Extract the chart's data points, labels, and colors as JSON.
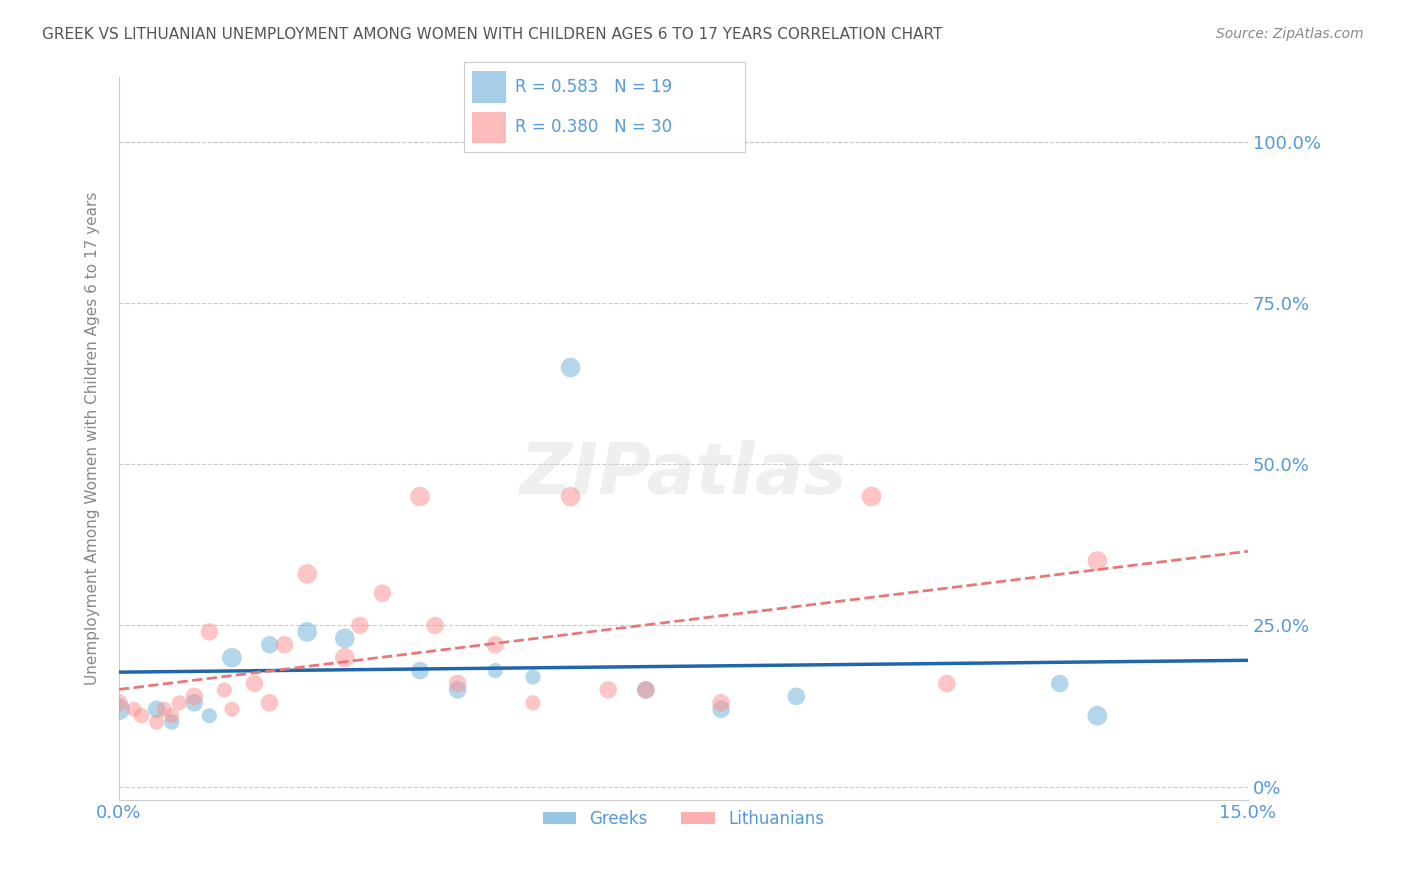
{
  "title": "GREEK VS LITHUANIAN UNEMPLOYMENT AMONG WOMEN WITH CHILDREN AGES 6 TO 17 YEARS CORRELATION CHART",
  "source": "Source: ZipAtlas.com",
  "xlabel": "",
  "ylabel": "Unemployment Among Women with Children Ages 6 to 17 years",
  "xlim": [
    0.0,
    0.15
  ],
  "ylim": [
    -0.02,
    1.1
  ],
  "xticks": [
    0.0,
    0.05,
    0.1,
    0.15
  ],
  "xtick_labels": [
    "0.0%",
    "",
    "",
    "15.0%"
  ],
  "ytick_labels_right": [
    "0%",
    "25.0%",
    "50.0%",
    "75.0%",
    "100.0%"
  ],
  "yticks_right": [
    0.0,
    0.25,
    0.5,
    0.75,
    1.0
  ],
  "watermark": "ZIPatlas",
  "legend_blue_r": "R = 0.583",
  "legend_blue_n": "N = 19",
  "legend_pink_r": "R = 0.380",
  "legend_pink_n": "N = 30",
  "blue_color": "#6baed6",
  "pink_color": "#fc8d8d",
  "blue_line_color": "#2166ac",
  "pink_line_color": "#e87878",
  "title_color": "#555555",
  "axis_label_color": "#888888",
  "tick_color": "#5599dd",
  "grid_color": "#cccccc",
  "blue_scatter_x": [
    0.0,
    0.005,
    0.007,
    0.01,
    0.012,
    0.015,
    0.02,
    0.025,
    0.03,
    0.04,
    0.045,
    0.05,
    0.055,
    0.06,
    0.07,
    0.08,
    0.09,
    0.125,
    0.13
  ],
  "blue_scatter_y": [
    0.12,
    0.12,
    0.1,
    0.13,
    0.11,
    0.2,
    0.22,
    0.24,
    0.23,
    0.18,
    0.15,
    0.18,
    0.17,
    0.65,
    0.15,
    0.12,
    0.14,
    0.16,
    0.11
  ],
  "blue_scatter_size": [
    120,
    80,
    60,
    80,
    60,
    100,
    80,
    100,
    100,
    80,
    80,
    60,
    60,
    100,
    80,
    80,
    80,
    80,
    100
  ],
  "pink_scatter_x": [
    0.0,
    0.002,
    0.003,
    0.005,
    0.006,
    0.007,
    0.008,
    0.01,
    0.012,
    0.014,
    0.015,
    0.018,
    0.02,
    0.022,
    0.025,
    0.03,
    0.032,
    0.035,
    0.04,
    0.042,
    0.045,
    0.05,
    0.055,
    0.06,
    0.065,
    0.07,
    0.08,
    0.1,
    0.11,
    0.13
  ],
  "pink_scatter_y": [
    0.13,
    0.12,
    0.11,
    0.1,
    0.12,
    0.11,
    0.13,
    0.14,
    0.24,
    0.15,
    0.12,
    0.16,
    0.13,
    0.22,
    0.33,
    0.2,
    0.25,
    0.3,
    0.45,
    0.25,
    0.16,
    0.22,
    0.13,
    0.45,
    0.15,
    0.15,
    0.13,
    0.45,
    0.16,
    0.35
  ],
  "pink_scatter_size": [
    80,
    60,
    60,
    60,
    60,
    60,
    60,
    80,
    80,
    60,
    60,
    80,
    80,
    80,
    100,
    100,
    80,
    80,
    100,
    80,
    80,
    80,
    60,
    100,
    80,
    80,
    80,
    100,
    80,
    100
  ]
}
